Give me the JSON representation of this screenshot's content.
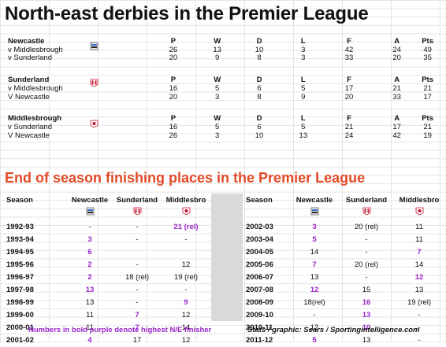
{
  "title": "North-east derbies in the Premier League",
  "columns": [
    "P",
    "W",
    "D",
    "L",
    "F",
    "A",
    "Pts"
  ],
  "derbies": [
    {
      "club": "Newcastle",
      "rows": [
        {
          "label": "v Middlesbrough",
          "P": "26",
          "W": "13",
          "D": "10",
          "L": "3",
          "F": "42",
          "A": "24",
          "Pts": "49"
        },
        {
          "label": "v Sunderland",
          "P": "20",
          "W": "9",
          "D": "8",
          "L": "3",
          "F": "33",
          "A": "20",
          "Pts": "35"
        }
      ]
    },
    {
      "club": "Sunderland",
      "rows": [
        {
          "label": "v Middlesbrough",
          "P": "16",
          "W": "5",
          "D": "6",
          "L": "5",
          "F": "17",
          "A": "21",
          "Pts": "21"
        },
        {
          "label": "V Newcastle",
          "P": "20",
          "W": "3",
          "D": "8",
          "L": "9",
          "F": "20",
          "A": "33",
          "Pts": "17"
        }
      ]
    },
    {
      "club": "Middlesbrough",
      "rows": [
        {
          "label": "v Sunderland",
          "P": "16",
          "W": "5",
          "D": "6",
          "L": "5",
          "F": "21",
          "A": "17",
          "Pts": "21"
        },
        {
          "label": "V Newcastle",
          "P": "26",
          "W": "3",
          "D": "10",
          "L": "13",
          "F": "24",
          "A": "42",
          "Pts": "19"
        }
      ]
    }
  ],
  "section2_title": "End of season finishing places in the Premier League",
  "season_headers": [
    "Season",
    "Newcastle",
    "Sunderland",
    "Middlesbro"
  ],
  "seasons_left": [
    {
      "season": "1992-93",
      "nu": "-",
      "su": "-",
      "mi": "21 (rel)",
      "best": "mi"
    },
    {
      "season": "1993-94",
      "nu": "3",
      "su": "-",
      "mi": "-",
      "best": "nu"
    },
    {
      "season": "1994-95",
      "nu": "6",
      "su": "",
      "mi": "",
      "best": "nu"
    },
    {
      "season": "1995-96",
      "nu": "2",
      "su": "-",
      "mi": "12",
      "best": "nu"
    },
    {
      "season": "1996-97",
      "nu": "2",
      "su": "18 (rel)",
      "mi": "19 (rel)",
      "best": "nu"
    },
    {
      "season": "1997-98",
      "nu": "13",
      "su": "-",
      "mi": "-",
      "best": "nu"
    },
    {
      "season": "1998-99",
      "nu": "13",
      "su": "-",
      "mi": "9",
      "best": "mi"
    },
    {
      "season": "1999-00",
      "nu": "11",
      "su": "7",
      "mi": "12",
      "best": "su"
    },
    {
      "season": "2000-01",
      "nu": "11",
      "su": "7",
      "mi": "14",
      "best": "su"
    },
    {
      "season": "2001-02",
      "nu": "4",
      "su": "17",
      "mi": "12",
      "best": "nu"
    }
  ],
  "seasons_right": [
    {
      "season": "2002-03",
      "nu": "3",
      "su": "20 (rel)",
      "mi": "11",
      "best": "nu"
    },
    {
      "season": "2003-04",
      "nu": "5",
      "su": "-",
      "mi": "11",
      "best": "nu"
    },
    {
      "season": "2004-05",
      "nu": "14",
      "su": "-",
      "mi": "7",
      "best": "mi"
    },
    {
      "season": "2005-06",
      "nu": "7",
      "su": "20 (rel)",
      "mi": "14",
      "best": "nu"
    },
    {
      "season": "2006-07",
      "nu": "13",
      "su": "-",
      "mi": "12",
      "best": "mi"
    },
    {
      "season": "2007-08",
      "nu": "12",
      "su": "15",
      "mi": "13",
      "best": "nu"
    },
    {
      "season": "2008-09",
      "nu": "18(rel)",
      "su": "16",
      "mi": "19 (rel)",
      "best": "su"
    },
    {
      "season": "2009-10",
      "nu": "-",
      "su": "13",
      "mi": "-",
      "best": "su"
    },
    {
      "season": "2010-11",
      "nu": "12",
      "su": "10",
      "mi": "-",
      "best": "su"
    },
    {
      "season": "2011-12",
      "nu": "5",
      "su": "13",
      "mi": "-",
      "best": "nu"
    }
  ],
  "footnote_left": "Numbers in bold purple denote highest N/E finisher",
  "footnote_right": "Stats / graphic: Sears / Sportingintelligence.com",
  "colors": {
    "title2": "#e24a26",
    "highlight": "#9a23c8"
  },
  "badges": [
    "newcastle-crest-icon",
    "sunderland-crest-icon",
    "middlesbrough-crest-icon"
  ]
}
